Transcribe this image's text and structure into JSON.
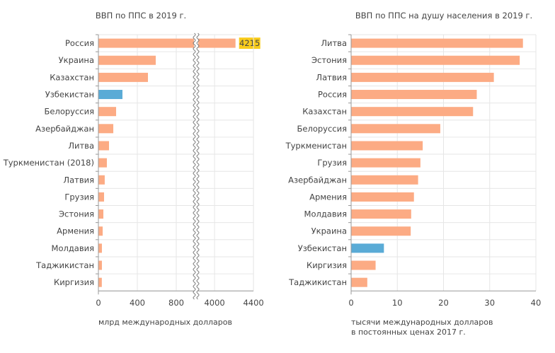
{
  "chart_data": [
    {
      "type": "bar",
      "orientation": "horizontal",
      "title": "ВВП по ППС в 2019 г.",
      "xlabel": "млрд международных долларов",
      "xlabel_line2": "",
      "categories": [
        "Россия",
        "Украина",
        "Казахстан",
        "Узбекистан",
        "Белоруссия",
        "Азербайджан",
        "Литва",
        "Туркменистан (2018)",
        "Латвия",
        "Грузия",
        "Эстония",
        "Армения",
        "Молдавия",
        "Таджикистан",
        "Киргизия"
      ],
      "values": [
        4215,
        589,
        509,
        247,
        182,
        153,
        109,
        87,
        65,
        58,
        51,
        44,
        36,
        36,
        35
      ],
      "highlight": "Узбекистан",
      "data_labels": {
        "Россия": "4215"
      },
      "axis_break": {
        "from": 1000,
        "to": 3810
      },
      "xlim": [
        0,
        4400
      ],
      "xticks": [
        0,
        400,
        800,
        4000,
        4400
      ],
      "xtick_labels": [
        "0",
        "400",
        "800",
        "4000",
        "4400"
      ],
      "grid": true
    },
    {
      "type": "bar",
      "orientation": "horizontal",
      "title": "ВВП по ППС на душу населения в 2019 г.",
      "xlabel": "тысячи международных долларов",
      "xlabel_line2": "в постоянных ценах 2017 г.",
      "categories": [
        "Литва",
        "Эстония",
        "Латвия",
        "Россия",
        "Казахстан",
        "Белоруссия",
        "Туркменистан",
        "Грузия",
        "Азербайджан",
        "Армения",
        "Молдавия",
        "Украина",
        "Узбекистан",
        "Киргизия",
        "Таджикистан"
      ],
      "values": [
        37.2,
        36.5,
        30.9,
        27.2,
        26.4,
        19.3,
        15.5,
        15.0,
        14.5,
        13.6,
        13.0,
        12.9,
        7.1,
        5.3,
        3.5
      ],
      "highlight": "Узбекистан",
      "xlim": [
        0,
        40
      ],
      "xticks": [
        0,
        10,
        20,
        30,
        40
      ],
      "xtick_labels": [
        "0",
        "10",
        "20",
        "30",
        "40"
      ],
      "grid": true
    }
  ],
  "colors": {
    "bar": "#fcab84",
    "highlight": "#5aabd6",
    "label_bg": "#f9cc1c",
    "grid": "#e6e6e6"
  }
}
